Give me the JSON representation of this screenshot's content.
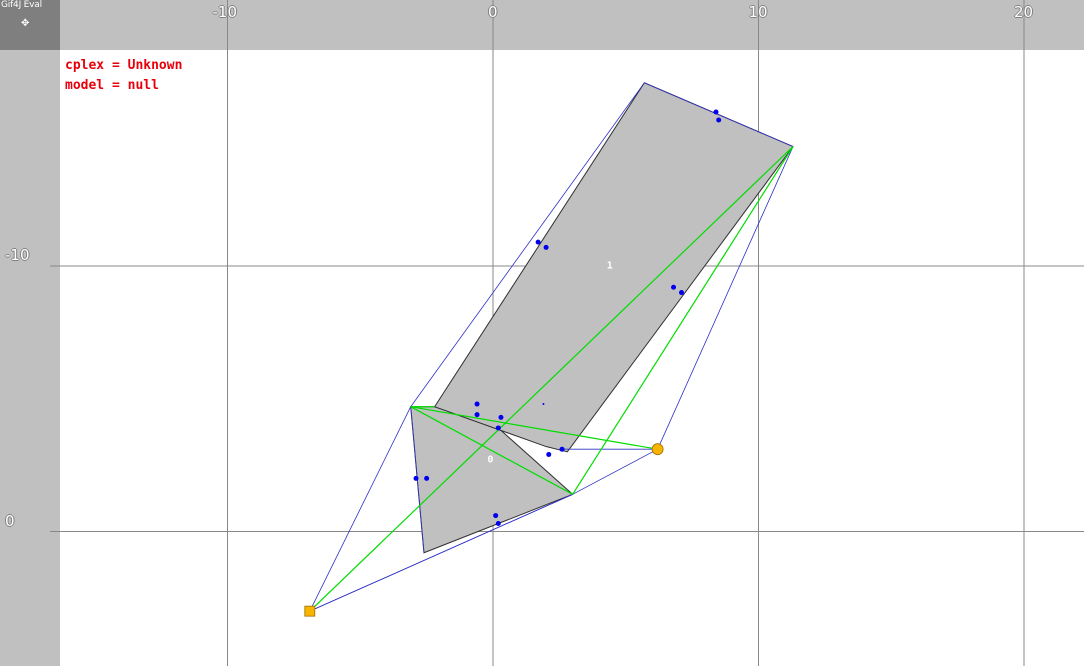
{
  "window": {
    "title": "Gif4J Eval",
    "corner_icon": "crosshair-icon"
  },
  "axes": {
    "x_ticks": [
      {
        "value": -10,
        "label": "-10"
      },
      {
        "value": 0,
        "label": "0"
      },
      {
        "value": 10,
        "label": "10"
      },
      {
        "value": 20,
        "label": "20"
      }
    ],
    "y_ticks": [
      {
        "value": -10,
        "label": "-10"
      },
      {
        "value": 0,
        "label": "0"
      }
    ]
  },
  "info": {
    "line1": "cplex = Unknown",
    "line2": "model = null"
  },
  "colors": {
    "polygon_fill": "#c0c0c0",
    "edge_blue": "#3030c8",
    "edge_green": "#00dd00",
    "point": "#0000ee",
    "marker": "#f7b500",
    "info_text": "#e8000b"
  },
  "polygons": [
    {
      "label": "0",
      "label_at": [
        -0.1,
        -2.6
      ],
      "points": [
        [
          -3.1,
          -4.7
        ],
        [
          -0.7,
          -4.7
        ],
        [
          3.0,
          -1.4
        ],
        [
          -2.6,
          0.8
        ]
      ]
    },
    {
      "label": "1",
      "label_at": [
        4.4,
        -9.9
      ],
      "points": [
        [
          -2.2,
          -4.7
        ],
        [
          5.7,
          -16.9
        ],
        [
          11.3,
          -14.5
        ],
        [
          2.8,
          -3.0
        ],
        [
          2.0,
          -3.2
        ]
      ]
    }
  ],
  "hull_edges": [
    [
      [
        -6.9,
        3.0
      ],
      [
        -3.1,
        -4.7
      ]
    ],
    [
      [
        -3.1,
        -4.7
      ],
      [
        5.7,
        -16.9
      ]
    ],
    [
      [
        5.7,
        -16.9
      ],
      [
        11.3,
        -14.5
      ]
    ],
    [
      [
        11.3,
        -14.5
      ],
      [
        6.2,
        -3.1
      ]
    ],
    [
      [
        6.2,
        -3.1
      ],
      [
        3.0,
        -1.4
      ]
    ],
    [
      [
        3.0,
        -1.4
      ],
      [
        -6.9,
        3.0
      ]
    ],
    [
      [
        -6.9,
        3.0
      ],
      [
        3.0,
        -1.4
      ]
    ],
    [
      [
        -3.1,
        -4.7
      ],
      [
        -2.6,
        0.8
      ]
    ],
    [
      [
        2.6,
        -3.1
      ],
      [
        6.2,
        -3.1
      ]
    ]
  ],
  "green_edges": [
    [
      [
        -6.9,
        3.0
      ],
      [
        11.3,
        -14.5
      ]
    ],
    [
      [
        -3.1,
        -4.7
      ],
      [
        6.2,
        -3.1
      ]
    ],
    [
      [
        -3.1,
        -4.7
      ],
      [
        3.0,
        -1.4
      ]
    ],
    [
      [
        3.0,
        -1.4
      ],
      [
        11.3,
        -14.5
      ]
    ],
    [
      [
        -3.1,
        -4.7
      ],
      [
        -2.2,
        -4.7
      ]
    ]
  ],
  "points": [
    [
      8.4,
      -15.8
    ],
    [
      8.5,
      -15.5
    ],
    [
      1.7,
      -10.9
    ],
    [
      2.0,
      -10.7
    ],
    [
      6.8,
      -9.2
    ],
    [
      7.1,
      -9.0
    ],
    [
      -0.6,
      -4.8
    ],
    [
      -0.6,
      -4.4
    ],
    [
      0.3,
      -4.3
    ],
    [
      0.2,
      -3.9
    ],
    [
      2.1,
      -2.9
    ],
    [
      2.6,
      -3.1
    ],
    [
      -2.9,
      -2.0
    ],
    [
      -2.5,
      -2.0
    ],
    [
      0.1,
      -0.6
    ],
    [
      0.2,
      -0.3
    ]
  ],
  "small_marks": [
    [
      1.9,
      -4.8
    ]
  ],
  "markers": [
    {
      "shape": "square",
      "at": [
        -6.9,
        3.0
      ]
    },
    {
      "shape": "circle",
      "at": [
        6.2,
        -3.1
      ]
    }
  ]
}
